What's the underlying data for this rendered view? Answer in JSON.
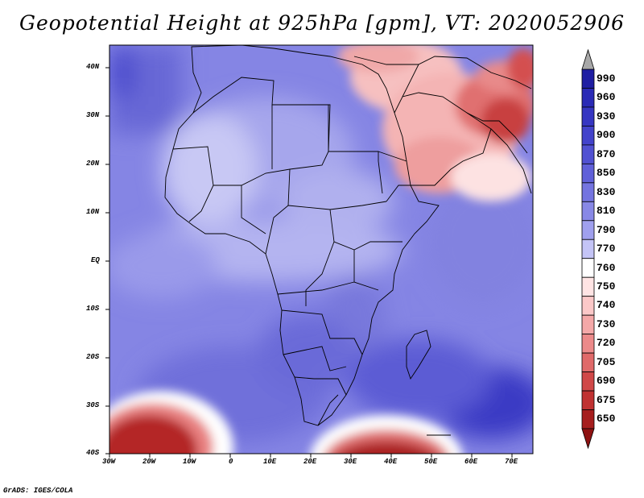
{
  "title": "Geopotential Height at 925hPa [gpm], VT: 2020052906",
  "credit": "GrADS: IGES/COLA",
  "map": {
    "variable": "Geopotential Height",
    "level": "925hPa",
    "units": "gpm",
    "valid_time": "2020052906",
    "lon_ticks": [
      "30W",
      "20W",
      "10W",
      "0",
      "10E",
      "20E",
      "30E",
      "40E",
      "50E",
      "60E",
      "70E"
    ],
    "lat_ticks": [
      "40N",
      "30N",
      "20N",
      "10N",
      "EQ",
      "10S",
      "20S",
      "30S",
      "40S"
    ]
  },
  "colorbar": {
    "levels": [
      "990",
      "960",
      "930",
      "900",
      "870",
      "850",
      "830",
      "810",
      "790",
      "770",
      "760",
      "750",
      "740",
      "730",
      "720",
      "705",
      "690",
      "675",
      "650"
    ],
    "colors": [
      "#1f1ea3",
      "#2a2ab6",
      "#3636c2",
      "#4343cb",
      "#5151d2",
      "#6060d9",
      "#7474e0",
      "#8888e6",
      "#a0a0ee",
      "#c4c4f6",
      "#ffffff",
      "#ffe4e4",
      "#fbc8c8",
      "#f4a8a8",
      "#ec8a8a",
      "#e06a6a",
      "#d04848",
      "#c03232",
      "#a61e1e"
    ],
    "over_color": "#a8a8a8",
    "under_color": "#8e1212"
  },
  "features": {
    "high_south_east_ocean": "high",
    "low_middle_east": "low",
    "low_southern_ocean": "low"
  }
}
